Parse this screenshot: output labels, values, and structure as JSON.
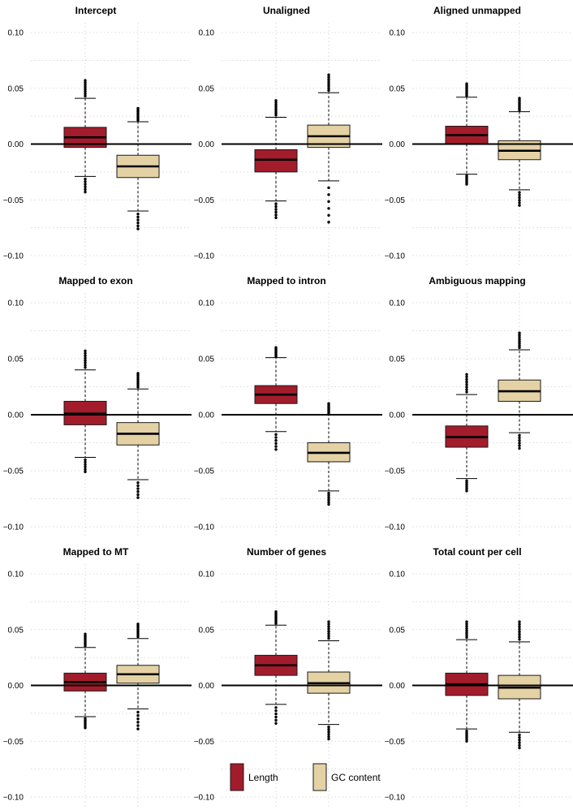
{
  "colors": {
    "length": "#a31c2c",
    "gc_content": "#e4d2a5",
    "box_stroke": "#1a1a1a",
    "grid": "#cfcfcf",
    "zero_line": "#000000"
  },
  "chart_data": [
    {
      "type": "box",
      "title": "Intercept",
      "ylim": [
        -0.1,
        0.1
      ],
      "yticks": [
        "0.10",
        "0.05",
        "0.00",
        "-0.05",
        "-0.10"
      ],
      "grid": true,
      "series": [
        {
          "q1": -0.003,
          "median": 0.006,
          "q3": 0.015,
          "whisker_low": -0.029,
          "whisker_high": 0.041,
          "outlier_low": -0.043,
          "outlier_high": 0.057
        },
        {
          "q1": -0.03,
          "median": -0.02,
          "q3": -0.01,
          "whisker_low": -0.06,
          "whisker_high": 0.02,
          "outlier_low": -0.076,
          "outlier_high": 0.032
        }
      ]
    },
    {
      "type": "box",
      "title": "Unaligned",
      "ylim": [
        -0.1,
        0.1
      ],
      "yticks": [
        "0.10",
        "0.05",
        "0.00",
        "-0.05",
        "-0.10"
      ],
      "grid": true,
      "series": [
        {
          "q1": -0.025,
          "median": -0.014,
          "q3": -0.005,
          "whisker_low": -0.051,
          "whisker_high": 0.024,
          "outlier_low": -0.066,
          "outlier_high": 0.039
        },
        {
          "q1": -0.003,
          "median": 0.007,
          "q3": 0.017,
          "whisker_low": -0.033,
          "whisker_high": 0.046,
          "outlier_low": -0.07,
          "outlier_high": 0.062
        }
      ]
    },
    {
      "type": "box",
      "title": "Aligned unmapped",
      "ylim": [
        -0.1,
        0.1
      ],
      "yticks": [
        "0.10",
        "0.05",
        "0.00",
        "-0.05",
        "-0.10"
      ],
      "grid": true,
      "series": [
        {
          "q1": 0.0,
          "median": 0.008,
          "q3": 0.016,
          "whisker_low": -0.027,
          "whisker_high": 0.042,
          "outlier_low": -0.036,
          "outlier_high": 0.054
        },
        {
          "q1": -0.014,
          "median": -0.006,
          "q3": 0.003,
          "whisker_low": -0.041,
          "whisker_high": 0.029,
          "outlier_low": -0.055,
          "outlier_high": 0.041
        }
      ]
    },
    {
      "type": "box",
      "title": "Mapped to exon",
      "ylim": [
        -0.1,
        0.1
      ],
      "yticks": [
        "0.10",
        "0.05",
        "0.00",
        "-0.05",
        "-0.10"
      ],
      "grid": true,
      "series": [
        {
          "q1": -0.009,
          "median": 0.001,
          "q3": 0.012,
          "whisker_low": -0.038,
          "whisker_high": 0.04,
          "outlier_low": -0.051,
          "outlier_high": 0.057
        },
        {
          "q1": -0.027,
          "median": -0.017,
          "q3": -0.007,
          "whisker_low": -0.058,
          "whisker_high": 0.023,
          "outlier_low": -0.074,
          "outlier_high": 0.037
        }
      ]
    },
    {
      "type": "box",
      "title": "Mapped to intron",
      "ylim": [
        -0.1,
        0.1
      ],
      "yticks": [
        "0.10",
        "0.05",
        "0.00",
        "-0.05",
        "-0.10"
      ],
      "grid": true,
      "series": [
        {
          "q1": 0.01,
          "median": 0.018,
          "q3": 0.026,
          "whisker_low": -0.015,
          "whisker_high": 0.051,
          "outlier_low": -0.031,
          "outlier_high": 0.06
        },
        {
          "q1": -0.042,
          "median": -0.034,
          "q3": -0.025,
          "whisker_low": -0.068,
          "whisker_high": 0.0,
          "outlier_low": -0.08,
          "outlier_high": 0.01
        }
      ]
    },
    {
      "type": "box",
      "title": "Ambiguous mapping",
      "ylim": [
        -0.1,
        0.1
      ],
      "yticks": [
        "0.10",
        "0.05",
        "0.00",
        "-0.05",
        "-0.10"
      ],
      "grid": true,
      "series": [
        {
          "q1": -0.029,
          "median": -0.02,
          "q3": -0.01,
          "whisker_low": -0.057,
          "whisker_high": 0.018,
          "outlier_low": -0.068,
          "outlier_high": 0.036
        },
        {
          "q1": 0.012,
          "median": 0.021,
          "q3": 0.031,
          "whisker_low": -0.016,
          "whisker_high": 0.058,
          "outlier_low": -0.03,
          "outlier_high": 0.073
        }
      ]
    },
    {
      "type": "box",
      "title": "Mapped to MT",
      "ylim": [
        -0.1,
        0.1
      ],
      "yticks": [
        "0.10",
        "0.05",
        "0.00",
        "-0.05",
        "-0.10"
      ],
      "grid": true,
      "series": [
        {
          "q1": -0.005,
          "median": 0.003,
          "q3": 0.011,
          "whisker_low": -0.028,
          "whisker_high": 0.034,
          "outlier_low": -0.038,
          "outlier_high": 0.046
        },
        {
          "q1": 0.002,
          "median": 0.01,
          "q3": 0.018,
          "whisker_low": -0.021,
          "whisker_high": 0.042,
          "outlier_low": -0.039,
          "outlier_high": 0.055
        }
      ]
    },
    {
      "type": "box",
      "title": "Number of genes",
      "ylim": [
        -0.1,
        0.1
      ],
      "yticks": [
        "0.10",
        "0.05",
        "0.00",
        "-0.05",
        "-0.10"
      ],
      "grid": true,
      "series": [
        {
          "q1": 0.009,
          "median": 0.018,
          "q3": 0.027,
          "whisker_low": -0.017,
          "whisker_high": 0.054,
          "outlier_low": -0.034,
          "outlier_high": 0.066
        },
        {
          "q1": -0.007,
          "median": 0.002,
          "q3": 0.012,
          "whisker_low": -0.035,
          "whisker_high": 0.04,
          "outlier_low": -0.048,
          "outlier_high": 0.057
        }
      ]
    },
    {
      "type": "box",
      "title": "Total count per cell",
      "ylim": [
        -0.1,
        0.1
      ],
      "yticks": [
        "0.10",
        "0.05",
        "0.00",
        "-0.05",
        "-0.10"
      ],
      "grid": true,
      "series": [
        {
          "q1": -0.009,
          "median": 0.001,
          "q3": 0.011,
          "whisker_low": -0.039,
          "whisker_high": 0.041,
          "outlier_low": -0.05,
          "outlier_high": 0.057
        },
        {
          "q1": -0.012,
          "median": -0.002,
          "q3": 0.009,
          "whisker_low": -0.042,
          "whisker_high": 0.039,
          "outlier_low": -0.056,
          "outlier_high": 0.057
        }
      ]
    }
  ],
  "legend": {
    "position": "bottom-center",
    "items": [
      {
        "label": "Length",
        "color_key": "length"
      },
      {
        "label": "GC content",
        "color_key": "gc_content"
      }
    ]
  }
}
